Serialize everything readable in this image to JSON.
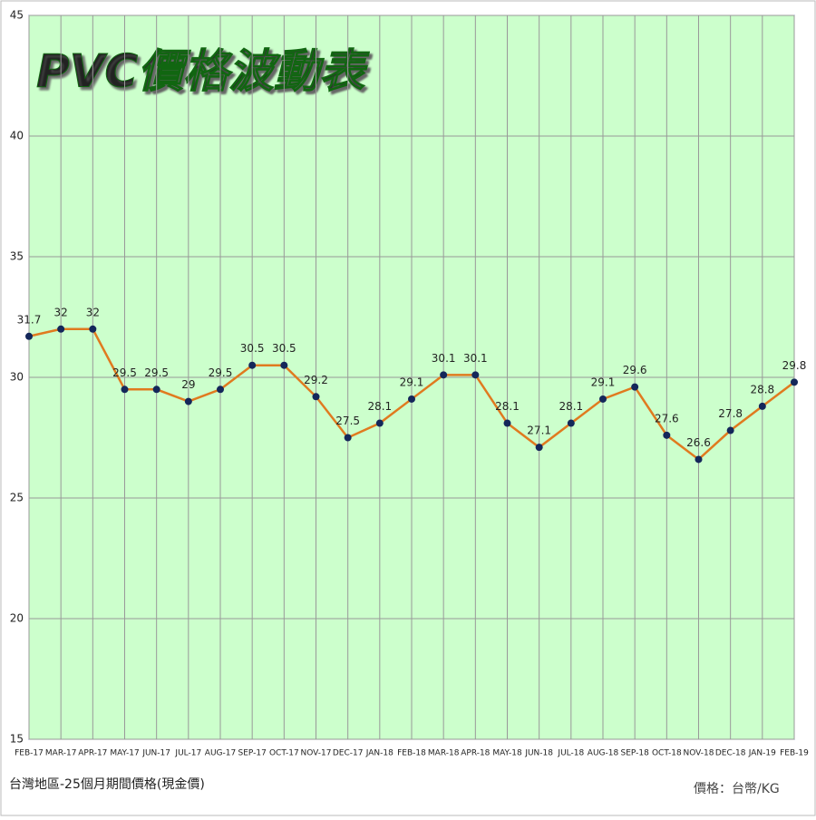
{
  "chart_data": {
    "type": "line",
    "title": "PVC價格波動表",
    "categories": [
      "FEB-17",
      "MAR-17",
      "APR-17",
      "MAY-17",
      "JUN-17",
      "JUL-17",
      "AUG-17",
      "SEP-17",
      "OCT-17",
      "NOV-17",
      "DEC-17",
      "JAN-18",
      "FEB-18",
      "MAR-18",
      "APR-18",
      "MAY-18",
      "JUN-18",
      "JUL-18",
      "AUG-18",
      "SEP-18",
      "OCT-18",
      "NOV-18",
      "DEC-18",
      "JAN-19",
      "FEB-19"
    ],
    "series": [
      {
        "name": "PVC",
        "color": "#e07a1f",
        "marker_color": "#14275a",
        "values": [
          31.7,
          32,
          32,
          29.5,
          29.5,
          29,
          29.5,
          30.5,
          30.5,
          29.2,
          27.5,
          28.1,
          29.1,
          30.1,
          30.1,
          28.1,
          27.1,
          28.1,
          29.1,
          29.6,
          27.6,
          26.6,
          27.8,
          28.8,
          29.8
        ]
      }
    ],
    "ylim": [
      15,
      45
    ],
    "yticks": [
      15,
      20,
      25,
      30,
      35,
      40,
      45
    ],
    "grid": true,
    "note": "台灣地區-25個月期間價格(現金價)",
    "unit": "價格：台幣/KG"
  }
}
